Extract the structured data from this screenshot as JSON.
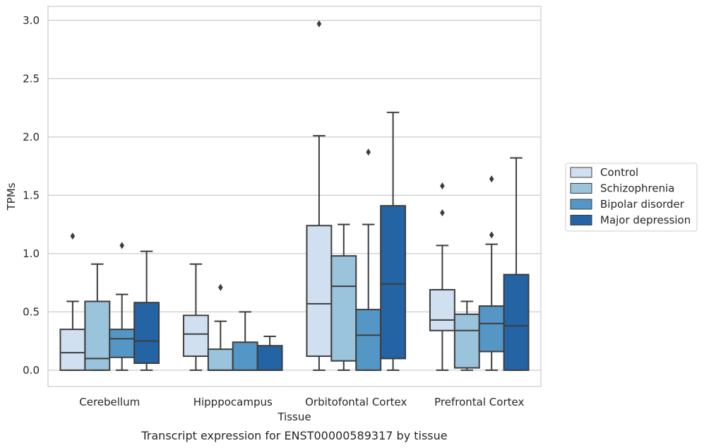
{
  "chart_data": {
    "type": "boxplot",
    "title": "",
    "caption": "Transcript expression for ENST00000589317 by tissue",
    "xlabel": "Tissue",
    "ylabel": "TPMs",
    "ylim": [
      -0.14,
      3.12
    ],
    "yticks": [
      0.0,
      0.5,
      1.0,
      1.5,
      2.0,
      2.5,
      3.0
    ],
    "ytick_labels": [
      "0.0",
      "0.5",
      "1.0",
      "1.5",
      "2.0",
      "2.5",
      "3.0"
    ],
    "categories": [
      "Cerebellum",
      "Hipppocampus",
      "Orbitofontal Cortex",
      "Prefrontal Cortex"
    ],
    "grid": "horizontal",
    "legend_position": "right-center",
    "series": [
      {
        "name": "Control",
        "color": "#d0e0f0",
        "boxes": [
          {
            "whislo": 0.0,
            "q1": 0.0,
            "med": 0.15,
            "q3": 0.35,
            "whishi": 0.59,
            "fliers": [
              1.15
            ]
          },
          {
            "whislo": 0.0,
            "q1": 0.12,
            "med": 0.31,
            "q3": 0.47,
            "whishi": 0.91,
            "fliers": []
          },
          {
            "whislo": 0.0,
            "q1": 0.12,
            "med": 0.57,
            "q3": 1.24,
            "whishi": 2.01,
            "fliers": [
              2.97
            ]
          },
          {
            "whislo": 0.0,
            "q1": 0.34,
            "med": 0.43,
            "q3": 0.69,
            "whishi": 1.07,
            "fliers": [
              1.35,
              1.58
            ]
          }
        ]
      },
      {
        "name": "Schizophrenia",
        "color": "#9ac3dc",
        "boxes": [
          {
            "whislo": 0.0,
            "q1": 0.0,
            "med": 0.1,
            "q3": 0.59,
            "whishi": 0.91,
            "fliers": []
          },
          {
            "whislo": 0.0,
            "q1": 0.0,
            "med": 0.0,
            "q3": 0.18,
            "whishi": 0.42,
            "fliers": [
              0.71
            ]
          },
          {
            "whislo": 0.0,
            "q1": 0.08,
            "med": 0.72,
            "q3": 0.98,
            "whishi": 1.25,
            "fliers": []
          },
          {
            "whislo": 0.0,
            "q1": 0.02,
            "med": 0.34,
            "q3": 0.48,
            "whishi": 0.59,
            "fliers": []
          }
        ]
      },
      {
        "name": "Bipolar disorder",
        "color": "#5497c6",
        "boxes": [
          {
            "whislo": 0.0,
            "q1": 0.11,
            "med": 0.27,
            "q3": 0.35,
            "whishi": 0.65,
            "fliers": [
              1.07
            ]
          },
          {
            "whislo": 0.0,
            "q1": 0.0,
            "med": 0.0,
            "q3": 0.24,
            "whishi": 0.5,
            "fliers": []
          },
          {
            "whislo": 0.0,
            "q1": 0.0,
            "med": 0.3,
            "q3": 0.52,
            "whishi": 1.25,
            "fliers": [
              1.87
            ]
          },
          {
            "whislo": 0.0,
            "q1": 0.16,
            "med": 0.4,
            "q3": 0.55,
            "whishi": 1.08,
            "fliers": [
              1.16,
              1.64
            ]
          }
        ]
      },
      {
        "name": "Major depression",
        "color": "#2464a4",
        "boxes": [
          {
            "whislo": 0.0,
            "q1": 0.06,
            "med": 0.25,
            "q3": 0.58,
            "whishi": 1.02,
            "fliers": []
          },
          {
            "whislo": 0.0,
            "q1": 0.0,
            "med": 0.0,
            "q3": 0.21,
            "whishi": 0.29,
            "fliers": []
          },
          {
            "whislo": 0.0,
            "q1": 0.1,
            "med": 0.74,
            "q3": 1.41,
            "whishi": 2.21,
            "fliers": []
          },
          {
            "whislo": 0.0,
            "q1": 0.0,
            "med": 0.38,
            "q3": 0.82,
            "whishi": 1.82,
            "fliers": []
          }
        ]
      }
    ]
  }
}
